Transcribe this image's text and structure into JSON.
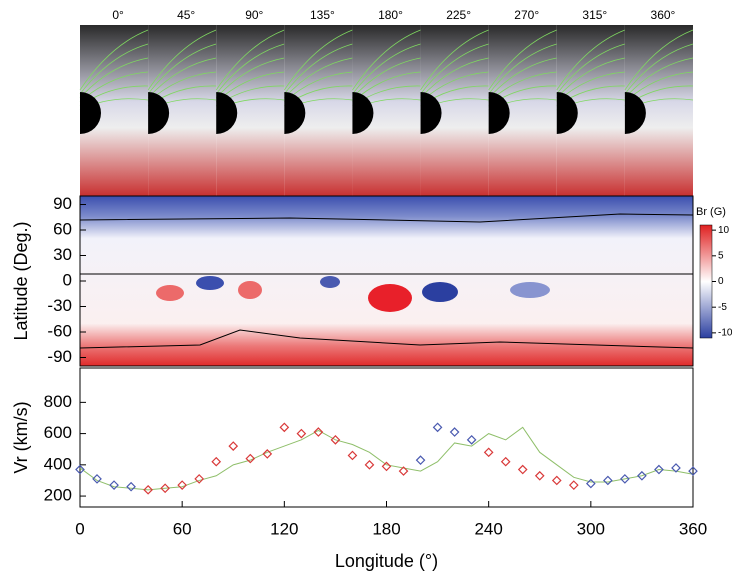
{
  "chart_data": [
    {
      "type": "image-strip",
      "categories": [
        "0°",
        "45°",
        "90°",
        "135°",
        "180°",
        "225°",
        "270°",
        "315°",
        "360°"
      ]
    },
    {
      "type": "map",
      "ylabel": "Latitude (Deg.)",
      "ylim": [
        -100,
        100
      ],
      "yticks": [
        90,
        60,
        30,
        0,
        -30,
        -60,
        -90
      ],
      "colorbar_label": "Br (G)",
      "clim": [
        -11,
        11
      ],
      "cticks": [
        10,
        5,
        0,
        -5,
        -10
      ]
    },
    {
      "type": "scatter",
      "ylabel": "Vr (km/s)",
      "xlabel": "Longitude (°)",
      "xlim": [
        0,
        360
      ],
      "xticks": [
        0,
        60,
        120,
        180,
        240,
        300,
        360
      ],
      "ylim": [
        130,
        1020
      ],
      "yticks": [
        200,
        400,
        600,
        800
      ],
      "line": {
        "color": "#8fbf6a",
        "x": [
          0,
          10,
          20,
          30,
          40,
          50,
          60,
          70,
          80,
          90,
          100,
          110,
          120,
          130,
          140,
          150,
          160,
          170,
          180,
          190,
          200,
          210,
          220,
          230,
          240,
          250,
          260,
          270,
          280,
          290,
          300,
          310,
          320,
          330,
          340,
          350,
          360
        ],
        "values": [
          380,
          300,
          260,
          250,
          240,
          250,
          260,
          300,
          330,
          400,
          430,
          480,
          520,
          560,
          620,
          560,
          530,
          480,
          400,
          380,
          360,
          420,
          540,
          520,
          600,
          560,
          640,
          480,
          400,
          320,
          290,
          290,
          310,
          330,
          370,
          360,
          340
        ]
      },
      "series": [
        {
          "color": "#d93a3a",
          "x": [
            40,
            50,
            60,
            70,
            80,
            90,
            100,
            110,
            120,
            130,
            140,
            150,
            160,
            170,
            180,
            190,
            240,
            250,
            260,
            270,
            280,
            290
          ],
          "values": [
            240,
            250,
            270,
            310,
            420,
            520,
            440,
            470,
            640,
            600,
            610,
            560,
            460,
            400,
            390,
            360,
            480,
            420,
            370,
            330,
            300,
            270
          ]
        },
        {
          "color": "#4a5ab0",
          "x": [
            0,
            10,
            20,
            30,
            200,
            210,
            220,
            230,
            300,
            310,
            320,
            330,
            340,
            350,
            360
          ],
          "values": [
            370,
            310,
            270,
            260,
            430,
            640,
            610,
            560,
            280,
            300,
            310,
            330,
            370,
            380,
            360
          ]
        }
      ]
    }
  ]
}
